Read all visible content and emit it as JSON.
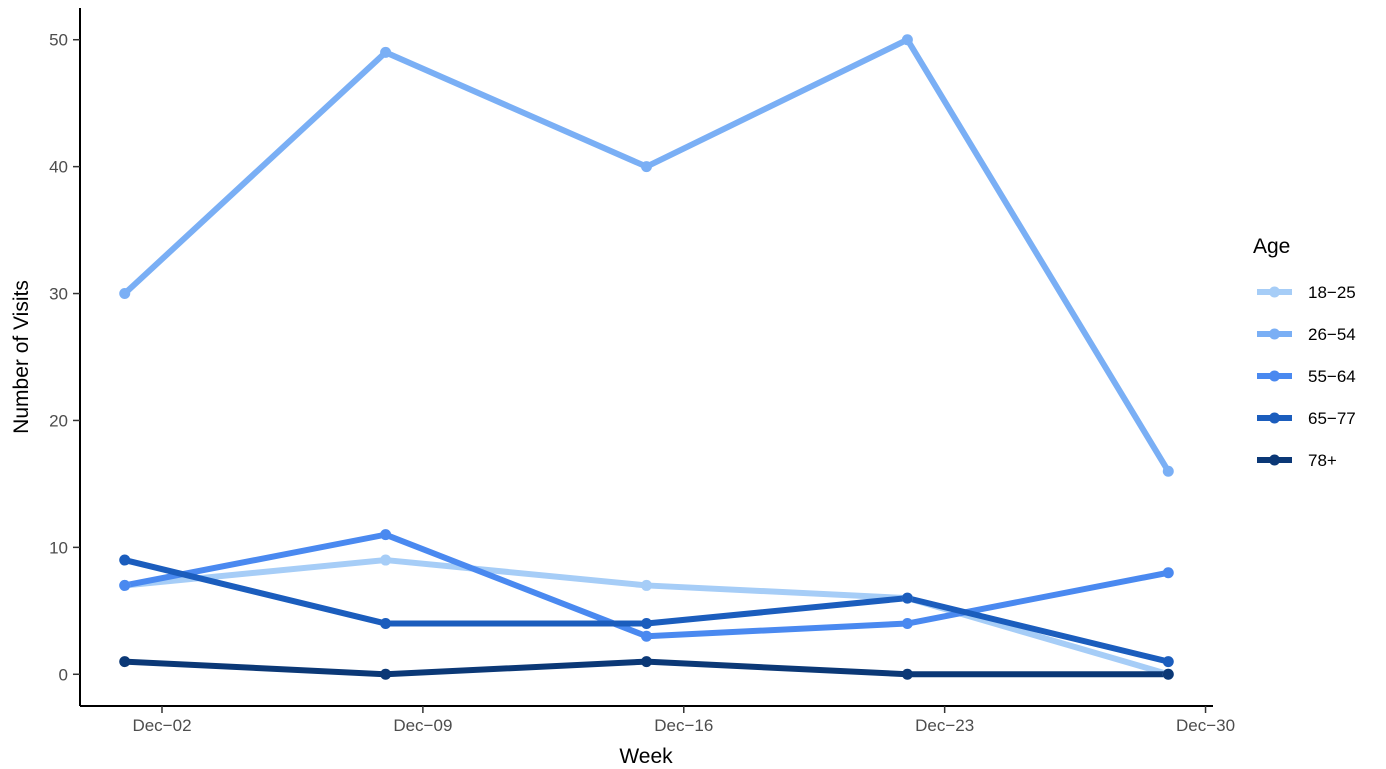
{
  "chart_data": {
    "type": "line",
    "title": "",
    "xlabel": "Week",
    "ylabel": "Number of Visits",
    "x_tick_labels": [
      "Dec−02",
      "Dec−09",
      "Dec−16",
      "Dec−23",
      "Dec−30"
    ],
    "x": [
      "2018-12-01",
      "2018-12-08",
      "2018-12-15",
      "2018-12-22",
      "2018-12-29"
    ],
    "y_ticks": [
      0,
      10,
      20,
      30,
      40,
      50
    ],
    "ylim": [
      -2.5,
      52.5
    ],
    "grid": false,
    "legend": {
      "title": "Age",
      "position": "right"
    },
    "series": [
      {
        "name": "18−25",
        "color": "#a6cdf7",
        "values": [
          7,
          9,
          7,
          6,
          0
        ]
      },
      {
        "name": "26−54",
        "color": "#7aaff5",
        "values": [
          30,
          49,
          40,
          50,
          16
        ]
      },
      {
        "name": "55−64",
        "color": "#4a89f0",
        "values": [
          7,
          11,
          3,
          4,
          8
        ]
      },
      {
        "name": "65−77",
        "color": "#1b5dbd",
        "values": [
          9,
          4,
          4,
          6,
          1
        ]
      },
      {
        "name": "78+",
        "color": "#0b3876",
        "values": [
          1,
          0,
          1,
          0,
          0
        ]
      }
    ]
  }
}
